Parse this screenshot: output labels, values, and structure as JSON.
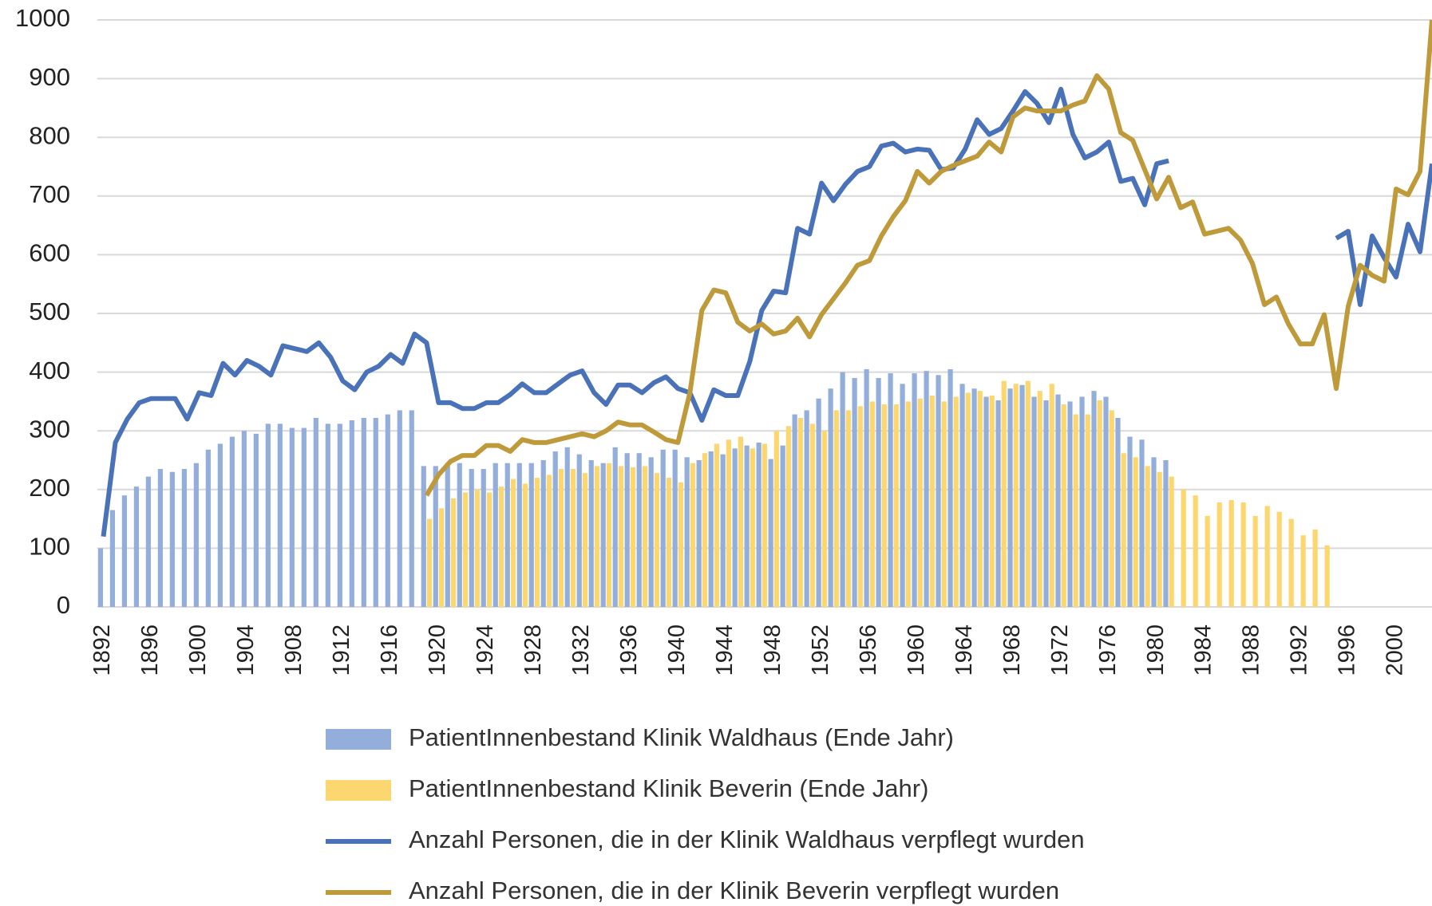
{
  "chart_data": {
    "type": "combo",
    "x": [
      1892,
      1893,
      1894,
      1895,
      1896,
      1897,
      1898,
      1899,
      1900,
      1901,
      1902,
      1903,
      1904,
      1905,
      1906,
      1907,
      1908,
      1909,
      1910,
      1911,
      1912,
      1913,
      1914,
      1915,
      1916,
      1917,
      1918,
      1919,
      1920,
      1921,
      1922,
      1923,
      1924,
      1925,
      1926,
      1927,
      1928,
      1929,
      1930,
      1931,
      1932,
      1933,
      1934,
      1935,
      1936,
      1937,
      1938,
      1939,
      1940,
      1941,
      1942,
      1943,
      1944,
      1945,
      1946,
      1947,
      1948,
      1949,
      1950,
      1951,
      1952,
      1953,
      1954,
      1955,
      1956,
      1957,
      1958,
      1959,
      1960,
      1961,
      1962,
      1963,
      1964,
      1965,
      1966,
      1967,
      1968,
      1969,
      1970,
      1971,
      1972,
      1973,
      1974,
      1975,
      1976,
      1977,
      1978,
      1979,
      1980,
      1981,
      1982,
      1983,
      1984,
      1985,
      1986,
      1987,
      1988,
      1989,
      1990,
      1991,
      1992,
      1993,
      1994,
      1995,
      1996,
      1997,
      1998,
      1999,
      2000,
      2001,
      2002,
      2003
    ],
    "xlim": [
      1891.5,
      2003
    ],
    "xticks": [
      1892,
      1896,
      1900,
      1904,
      1908,
      1912,
      1916,
      1920,
      1924,
      1928,
      1932,
      1936,
      1940,
      1944,
      1948,
      1952,
      1956,
      1960,
      1964,
      1968,
      1972,
      1976,
      1980,
      1984,
      1988,
      1992,
      1996,
      2000
    ],
    "ylim": [
      0,
      1000
    ],
    "yticks": [
      0,
      100,
      200,
      300,
      400,
      500,
      600,
      700,
      800,
      900,
      1000
    ],
    "grid": true,
    "series": [
      {
        "name": "PatientInnenbestand Klinik Waldhaus (Ende Jahr)",
        "type": "bar",
        "color": "#94aedc",
        "values": [
          100,
          165,
          190,
          205,
          222,
          235,
          230,
          235,
          245,
          268,
          278,
          290,
          300,
          295,
          312,
          312,
          305,
          305,
          322,
          312,
          312,
          318,
          322,
          322,
          328,
          335,
          335,
          240,
          240,
          245,
          245,
          235,
          235,
          245,
          245,
          245,
          245,
          250,
          265,
          272,
          260,
          250,
          245,
          272,
          262,
          262,
          255,
          268,
          268,
          255,
          250,
          265,
          260,
          270,
          275,
          280,
          252,
          275,
          328,
          335,
          355,
          372,
          400,
          390,
          405,
          390,
          398,
          380,
          398,
          402,
          395,
          405,
          380,
          372,
          358,
          352,
          372,
          378,
          358,
          352,
          362,
          350,
          358,
          368,
          358,
          322,
          290,
          285,
          255,
          250,
          null,
          null,
          null,
          null,
          null,
          null,
          null,
          null,
          null,
          null,
          null,
          null,
          null,
          null,
          null,
          null,
          null,
          null,
          null,
          null,
          null,
          null
        ]
      },
      {
        "name": "PatientInnenbestand Klinik Beverin (Ende Jahr)",
        "type": "bar",
        "color": "#fcd770",
        "values": [
          null,
          null,
          null,
          null,
          null,
          null,
          null,
          null,
          null,
          null,
          null,
          null,
          null,
          null,
          null,
          null,
          null,
          null,
          null,
          null,
          null,
          null,
          null,
          null,
          null,
          null,
          null,
          150,
          168,
          185,
          195,
          200,
          195,
          205,
          218,
          210,
          220,
          225,
          235,
          235,
          228,
          240,
          245,
          240,
          238,
          240,
          228,
          220,
          212,
          245,
          262,
          278,
          285,
          290,
          270,
          278,
          300,
          308,
          322,
          312,
          300,
          335,
          335,
          342,
          350,
          345,
          345,
          350,
          355,
          360,
          350,
          358,
          365,
          368,
          360,
          385,
          380,
          385,
          368,
          380,
          345,
          328,
          328,
          352,
          335,
          262,
          255,
          240,
          230,
          222,
          200,
          190,
          155,
          178,
          182,
          178,
          155,
          172,
          162,
          150,
          122,
          132,
          105,
          null,
          null,
          null,
          null,
          null,
          null,
          null,
          null,
          null
        ]
      },
      {
        "name": "Anzahl Personen, die in der Klinik Waldhaus verpflegt wurden",
        "type": "line",
        "color": "#4a72b8",
        "values": [
          120,
          280,
          320,
          348,
          355,
          355,
          355,
          320,
          365,
          360,
          415,
          395,
          420,
          410,
          395,
          445,
          440,
          435,
          450,
          425,
          385,
          370,
          400,
          410,
          430,
          415,
          465,
          450,
          348,
          348,
          338,
          338,
          348,
          348,
          362,
          380,
          365,
          365,
          380,
          395,
          402,
          365,
          345,
          378,
          378,
          365,
          382,
          392,
          372,
          365,
          318,
          370,
          360,
          360,
          418,
          505,
          538,
          535,
          645,
          635,
          722,
          692,
          720,
          742,
          750,
          785,
          790,
          775,
          780,
          778,
          745,
          748,
          780,
          830,
          805,
          815,
          845,
          878,
          858,
          825,
          882,
          805,
          765,
          775,
          792,
          725,
          730,
          685,
          755,
          760,
          null,
          null,
          null,
          null,
          null,
          null,
          null,
          null,
          null,
          null,
          null,
          null,
          null,
          628,
          640,
          515,
          632,
          595,
          562,
          652,
          605,
          755
        ]
      },
      {
        "name": "Anzahl Personen, die in der Klinik Beverin verpflegt wurden",
        "type": "line",
        "color": "#bf9a3a",
        "values": [
          null,
          null,
          null,
          null,
          null,
          null,
          null,
          null,
          null,
          null,
          null,
          null,
          null,
          null,
          null,
          null,
          null,
          null,
          null,
          null,
          null,
          null,
          null,
          null,
          null,
          null,
          null,
          190,
          225,
          248,
          258,
          258,
          275,
          275,
          265,
          285,
          280,
          280,
          285,
          290,
          295,
          290,
          300,
          315,
          310,
          310,
          298,
          285,
          280,
          365,
          505,
          540,
          535,
          485,
          470,
          482,
          465,
          470,
          492,
          460,
          498,
          525,
          552,
          582,
          590,
          632,
          665,
          692,
          742,
          722,
          742,
          752,
          760,
          768,
          792,
          775,
          835,
          850,
          845,
          845,
          845,
          855,
          862,
          905,
          882,
          808,
          795,
          745,
          695,
          732,
          680,
          690,
          635,
          640,
          645,
          625,
          585,
          515,
          528,
          482,
          448,
          448,
          498,
          372,
          512,
          582,
          565,
          555,
          712,
          702,
          742,
          1000
        ]
      }
    ]
  }
}
